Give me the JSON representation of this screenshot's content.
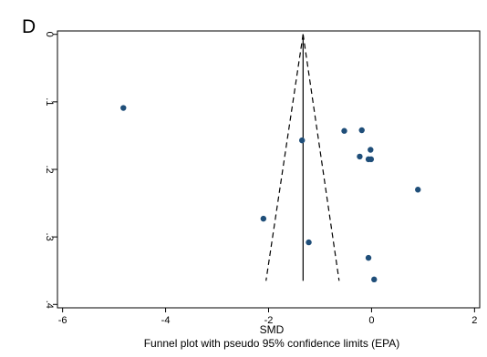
{
  "panel_label": "D",
  "chart_data": {
    "type": "scatter",
    "xlabel": "SMD",
    "caption": "Funnel plot with pseudo 95% confidence limits (EPA)",
    "x_ticks": [
      "-6",
      "-4",
      "-2",
      "0",
      "2"
    ],
    "y_ticks": [
      "0",
      ".1",
      ".2",
      ".3",
      ".4"
    ],
    "xlim": [
      -6.1,
      2.1
    ],
    "ylim_reversed": [
      -0.005,
      0.405
    ],
    "y_axis_reversed": true,
    "pooled_estimate": -1.33,
    "funnel": {
      "apex": [
        -1.33,
        0.0
      ],
      "left_base": [
        -2.05,
        0.365
      ],
      "right_base": [
        -0.63,
        0.365
      ]
    },
    "points": [
      {
        "x": -4.82,
        "y": 0.109
      },
      {
        "x": -1.35,
        "y": 0.157
      },
      {
        "x": -0.53,
        "y": 0.143
      },
      {
        "x": -0.19,
        "y": 0.142
      },
      {
        "x": -0.02,
        "y": 0.171
      },
      {
        "x": -0.23,
        "y": 0.181
      },
      {
        "x": -0.06,
        "y": 0.185
      },
      {
        "x": -0.01,
        "y": 0.185
      },
      {
        "x": 0.9,
        "y": 0.23
      },
      {
        "x": -2.1,
        "y": 0.273
      },
      {
        "x": -1.22,
        "y": 0.308
      },
      {
        "x": -0.06,
        "y": 0.331
      },
      {
        "x": 0.05,
        "y": 0.363
      }
    ],
    "marker_color": "#1f4e79"
  }
}
